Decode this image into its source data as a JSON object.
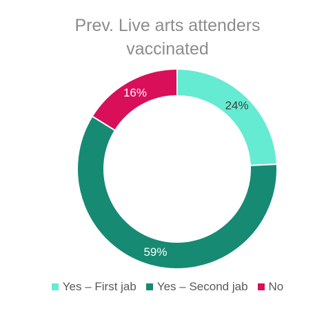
{
  "chart_data": {
    "type": "donut",
    "title": "Prev. Live arts attenders vaccinated",
    "categories": [
      "Yes – First jab",
      "Yes – Second jab",
      "No"
    ],
    "values": [
      24,
      59,
      16
    ],
    "value_labels": [
      "24%",
      "59%",
      "16%"
    ],
    "colors": [
      "#64ebd2",
      "#178a73",
      "#d90f59"
    ],
    "legend": "bottom"
  }
}
